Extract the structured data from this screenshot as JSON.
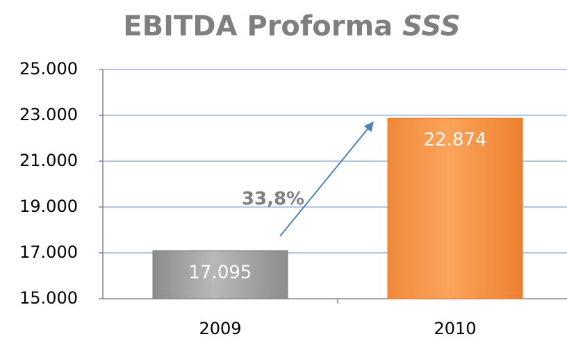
{
  "chart_data": {
    "type": "bar",
    "title": "EBITDA Proforma",
    "title_emphasis": "SSS",
    "categories": [
      "2009",
      "2010"
    ],
    "values": [
      17095,
      22874
    ],
    "value_labels": [
      "17.095",
      "22.874"
    ],
    "colors": [
      "#a6a6a6",
      "#f79646"
    ],
    "ylim": [
      15000,
      25000
    ],
    "yticks": [
      {
        "value": 15000,
        "label": "15.000"
      },
      {
        "value": 17000,
        "label": "17.000"
      },
      {
        "value": 19000,
        "label": "19.000"
      },
      {
        "value": 21000,
        "label": "21.000"
      },
      {
        "value": 23000,
        "label": "23.000"
      },
      {
        "value": 25000,
        "label": "25.000"
      }
    ],
    "grid": true,
    "annotation": "33,8%"
  }
}
